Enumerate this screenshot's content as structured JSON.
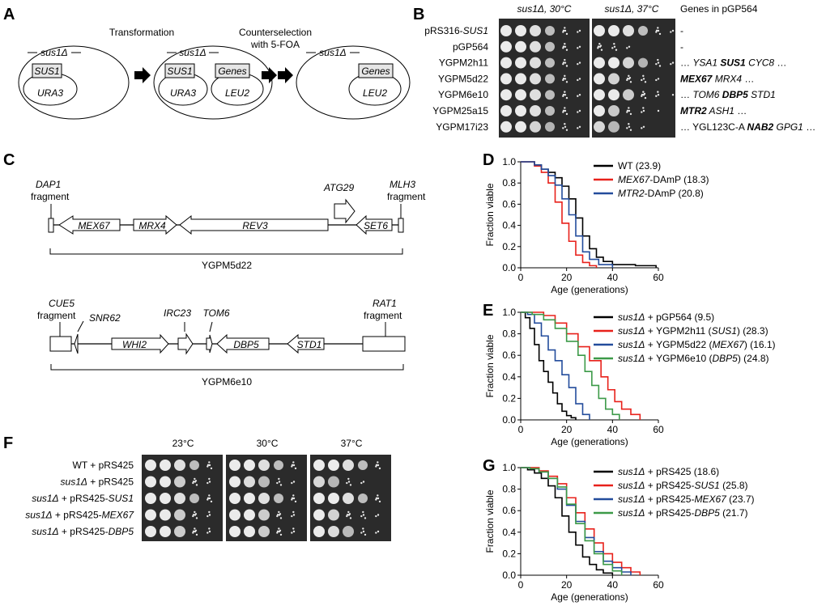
{
  "panels": {
    "A": {
      "label": "A",
      "strain": "sus1Δ",
      "transformation": "Transformation",
      "counterselection": [
        "Counterselection",
        "with 5-FOA"
      ],
      "gene_sus1": "SUS1",
      "gene_ura3": "URA3",
      "gene_genes": "Genes",
      "gene_leu2": "LEU2"
    },
    "B": {
      "label": "B",
      "col1": "sus1Δ, 30°C",
      "col2": "sus1Δ, 37°C",
      "col3": "Genes in pGP564",
      "rows": [
        {
          "name": "pRS316-",
          "name_it": "SUS1",
          "genes": [
            {
              "t": "-"
            }
          ]
        },
        {
          "name": "pGP564",
          "name_it": "",
          "genes": [
            {
              "t": "-"
            }
          ]
        },
        {
          "name": "YGPM2h11",
          "name_it": "",
          "genes": [
            {
              "t": "… "
            },
            {
              "t": "YSA1 ",
              "i": true
            },
            {
              "t": "SUS1",
              "i": true,
              "b": true
            },
            {
              "t": " CYC8",
              "i": true
            },
            {
              "t": " …"
            }
          ]
        },
        {
          "name": "YGPM5d22",
          "name_it": "",
          "genes": [
            {
              "t": "MEX67",
              "i": true,
              "b": true
            },
            {
              "t": " MRX4",
              "i": true
            },
            {
              "t": " …"
            }
          ]
        },
        {
          "name": "YGPM6e10",
          "name_it": "",
          "genes": [
            {
              "t": "… "
            },
            {
              "t": "TOM6 ",
              "i": true
            },
            {
              "t": "DBP5",
              "i": true,
              "b": true
            },
            {
              "t": " STD1",
              "i": true
            }
          ]
        },
        {
          "name": "YGPM25a15",
          "name_it": "",
          "genes": [
            {
              "t": "MTR2",
              "i": true,
              "b": true
            },
            {
              "t": " ASH1",
              "i": true
            },
            {
              "t": " …"
            }
          ]
        },
        {
          "name": "YGPM17i23",
          "name_it": "",
          "genes": [
            {
              "t": "… YGL123C-A "
            },
            {
              "t": "NAB2",
              "i": true,
              "b": true
            },
            {
              "t": " GPG1",
              "i": true
            },
            {
              "t": " …"
            }
          ]
        }
      ]
    },
    "C": {
      "label": "C",
      "map1": {
        "dap1": "DAP1",
        "dap1_frag": "fragment",
        "mlh3": "MLH3",
        "mlh3_frag": "fragment",
        "genes": [
          "MEX67",
          "MRX4",
          "REV3",
          "ATG29",
          "SET6"
        ],
        "name": "YGPM5d22"
      },
      "map2": {
        "cue5": "CUE5",
        "cue5_frag": "fragment",
        "rat1": "RAT1",
        "rat1_frag": "fragment",
        "genes": [
          "SNR62",
          "WHI2",
          "IRC23",
          "TOM6",
          "DBP5",
          "STD1"
        ],
        "name": "YGPM6e10"
      }
    },
    "F": {
      "label": "F",
      "temps": [
        "23°C",
        "30°C",
        "37°C"
      ],
      "rows": [
        {
          "a": "WT + pRS425",
          "b": ""
        },
        {
          "a": "sus1Δ + pRS425",
          "b": ""
        },
        {
          "a": "sus1Δ + pRS425-",
          "b": "SUS1"
        },
        {
          "a": "sus1Δ + pRS425-",
          "b": "MEX67"
        },
        {
          "a": "sus1Δ + pRS425-",
          "b": "DBP5"
        }
      ]
    }
  },
  "chart_data": [
    {
      "id": "D",
      "label": "D",
      "type": "line",
      "xlabel": "Age (generations)",
      "ylabel": "Fraction viable",
      "xlim": [
        0,
        60
      ],
      "ylim": [
        0,
        1
      ],
      "xticks": [
        "0",
        "20",
        "40",
        "60"
      ],
      "yticks": [
        "0.0",
        "0.2",
        "0.4",
        "0.6",
        "0.8",
        "1.0"
      ],
      "series": [
        {
          "name": "WT (23.9)",
          "pre": "",
          "it": "",
          "post": "WT (23.9)",
          "color": "#000000",
          "points": [
            [
              0,
              1
            ],
            [
              3,
              1
            ],
            [
              6,
              0.97
            ],
            [
              9,
              0.93
            ],
            [
              12,
              0.9
            ],
            [
              15,
              0.85
            ],
            [
              18,
              0.77
            ],
            [
              21,
              0.65
            ],
            [
              24,
              0.47
            ],
            [
              27,
              0.3
            ],
            [
              30,
              0.18
            ],
            [
              33,
              0.1
            ],
            [
              36,
              0.06
            ],
            [
              40,
              0.03
            ],
            [
              50,
              0.02
            ],
            [
              59,
              0
            ]
          ]
        },
        {
          "name": "MEX67-DAmP (18.3)",
          "pre": "",
          "it": "MEX67",
          "post": "-DAmP (18.3)",
          "color": "#e8211b",
          "points": [
            [
              0,
              1
            ],
            [
              3,
              1
            ],
            [
              6,
              0.96
            ],
            [
              9,
              0.9
            ],
            [
              12,
              0.8
            ],
            [
              15,
              0.62
            ],
            [
              18,
              0.42
            ],
            [
              21,
              0.25
            ],
            [
              24,
              0.12
            ],
            [
              27,
              0.05
            ],
            [
              30,
              0.02
            ],
            [
              33,
              0
            ]
          ]
        },
        {
          "name": "MTR2-DAmP (20.8)",
          "pre": "",
          "it": "MTR2",
          "post": "-DAmP (20.8)",
          "color": "#234c9c",
          "points": [
            [
              0,
              1
            ],
            [
              3,
              1
            ],
            [
              6,
              0.97
            ],
            [
              9,
              0.93
            ],
            [
              12,
              0.87
            ],
            [
              15,
              0.78
            ],
            [
              18,
              0.65
            ],
            [
              21,
              0.5
            ],
            [
              24,
              0.3
            ],
            [
              27,
              0.15
            ],
            [
              30,
              0.08
            ],
            [
              34,
              0.03
            ],
            [
              40,
              0
            ]
          ]
        }
      ]
    },
    {
      "id": "E",
      "label": "E",
      "type": "line",
      "xlabel": "Age (generations)",
      "ylabel": "Fraction viable",
      "xlim": [
        0,
        60
      ],
      "ylim": [
        0,
        1
      ],
      "xticks": [
        "0",
        "20",
        "40",
        "60"
      ],
      "yticks": [
        "0.0",
        "0.2",
        "0.4",
        "0.6",
        "0.8",
        "1.0"
      ],
      "series": [
        {
          "name": "sus1Δ + pGP564 (9.5)",
          "pre": "",
          "it": "sus1Δ",
          "post": " + pGP564 (9.5)",
          "color": "#000000",
          "points": [
            [
              0,
              1
            ],
            [
              2,
              0.95
            ],
            [
              4,
              0.85
            ],
            [
              6,
              0.7
            ],
            [
              8,
              0.55
            ],
            [
              10,
              0.45
            ],
            [
              12,
              0.35
            ],
            [
              14,
              0.25
            ],
            [
              16,
              0.15
            ],
            [
              18,
              0.08
            ],
            [
              20,
              0.04
            ],
            [
              22,
              0.02
            ],
            [
              24,
              0
            ]
          ]
        },
        {
          "name": "sus1Δ + YGPM2h11 (SUS1) (28.3)",
          "pre": "",
          "it": "sus1Δ",
          "post": " + YGPM2h11 (",
          "it2": "SUS1",
          "post2": ") (28.3)",
          "color": "#e8211b",
          "points": [
            [
              0,
              1
            ],
            [
              5,
              1
            ],
            [
              10,
              0.97
            ],
            [
              15,
              0.9
            ],
            [
              20,
              0.8
            ],
            [
              25,
              0.68
            ],
            [
              30,
              0.55
            ],
            [
              35,
              0.4
            ],
            [
              38,
              0.28
            ],
            [
              41,
              0.17
            ],
            [
              44,
              0.1
            ],
            [
              48,
              0.05
            ],
            [
              52,
              0
            ]
          ]
        },
        {
          "name": "sus1Δ + YGPM5d22 (MEX67) (16.1)",
          "pre": "",
          "it": "sus1Δ",
          "post": " + YGPM5d22 (",
          "it2": "MEX67",
          "post2": ") (16.1)",
          "color": "#234c9c",
          "points": [
            [
              0,
              1
            ],
            [
              3,
              0.98
            ],
            [
              6,
              0.9
            ],
            [
              9,
              0.78
            ],
            [
              12,
              0.65
            ],
            [
              15,
              0.55
            ],
            [
              18,
              0.42
            ],
            [
              21,
              0.3
            ],
            [
              24,
              0.15
            ],
            [
              27,
              0.05
            ],
            [
              30,
              0
            ]
          ]
        },
        {
          "name": "sus1Δ + YGPM6e10 (DBP5) (24.8)",
          "pre": "",
          "it": "sus1Δ",
          "post": " + YGPM6e10 (",
          "it2": "DBP5",
          "post2": ") (24.8)",
          "color": "#3c9a48",
          "points": [
            [
              0,
              1
            ],
            [
              5,
              0.98
            ],
            [
              10,
              0.93
            ],
            [
              15,
              0.85
            ],
            [
              20,
              0.73
            ],
            [
              25,
              0.6
            ],
            [
              28,
              0.45
            ],
            [
              31,
              0.32
            ],
            [
              34,
              0.2
            ],
            [
              37,
              0.1
            ],
            [
              40,
              0.05
            ],
            [
              43,
              0
            ]
          ]
        }
      ]
    },
    {
      "id": "G",
      "label": "G",
      "type": "line",
      "xlabel": "Age (generations)",
      "ylabel": "Fraction viable",
      "xlim": [
        0,
        60
      ],
      "ylim": [
        0,
        1
      ],
      "xticks": [
        "0",
        "20",
        "40",
        "60"
      ],
      "yticks": [
        "0.0",
        "0.2",
        "0.4",
        "0.6",
        "0.8",
        "1.0"
      ],
      "series": [
        {
          "name": "sus1Δ + pRS425 (18.6)",
          "pre": "",
          "it": "sus1Δ",
          "post": " + pRS425 (18.6)",
          "color": "#000000",
          "points": [
            [
              0,
              1
            ],
            [
              3,
              0.98
            ],
            [
              6,
              0.95
            ],
            [
              9,
              0.9
            ],
            [
              12,
              0.83
            ],
            [
              15,
              0.72
            ],
            [
              18,
              0.55
            ],
            [
              21,
              0.4
            ],
            [
              24,
              0.28
            ],
            [
              27,
              0.17
            ],
            [
              30,
              0.1
            ],
            [
              33,
              0.05
            ],
            [
              36,
              0.02
            ],
            [
              40,
              0
            ]
          ]
        },
        {
          "name": "sus1Δ + pRS425-SUS1 (25.8)",
          "pre": "",
          "it": "sus1Δ",
          "post": " + pRS425-",
          "it2": "SUS1",
          "post2": " (25.8)",
          "color": "#e8211b",
          "points": [
            [
              0,
              1
            ],
            [
              4,
              1
            ],
            [
              8,
              0.97
            ],
            [
              12,
              0.92
            ],
            [
              16,
              0.85
            ],
            [
              20,
              0.72
            ],
            [
              24,
              0.58
            ],
            [
              28,
              0.43
            ],
            [
              32,
              0.3
            ],
            [
              36,
              0.2
            ],
            [
              40,
              0.12
            ],
            [
              44,
              0.07
            ],
            [
              48,
              0.03
            ],
            [
              52,
              0
            ]
          ]
        },
        {
          "name": "sus1Δ + pRS425-MEX67 (23.7)",
          "pre": "",
          "it": "sus1Δ",
          "post": " + pRS425-",
          "it2": "MEX67",
          "post2": " (23.7)",
          "color": "#234c9c",
          "points": [
            [
              0,
              1
            ],
            [
              4,
              0.99
            ],
            [
              8,
              0.96
            ],
            [
              12,
              0.9
            ],
            [
              16,
              0.8
            ],
            [
              20,
              0.65
            ],
            [
              24,
              0.5
            ],
            [
              28,
              0.35
            ],
            [
              32,
              0.22
            ],
            [
              36,
              0.13
            ],
            [
              40,
              0.07
            ],
            [
              44,
              0.03
            ],
            [
              48,
              0
            ]
          ]
        },
        {
          "name": "sus1Δ + pRS425-DBP5 (21.7)",
          "pre": "",
          "it": "sus1Δ",
          "post": " + pRS425-",
          "it2": "DBP5",
          "post2": " (21.7)",
          "color": "#3c9a48",
          "points": [
            [
              0,
              1
            ],
            [
              4,
              0.99
            ],
            [
              8,
              0.96
            ],
            [
              12,
              0.9
            ],
            [
              16,
              0.82
            ],
            [
              20,
              0.66
            ],
            [
              24,
              0.48
            ],
            [
              28,
              0.32
            ],
            [
              32,
              0.2
            ],
            [
              36,
              0.1
            ],
            [
              40,
              0.04
            ],
            [
              44,
              0
            ]
          ]
        }
      ]
    }
  ]
}
